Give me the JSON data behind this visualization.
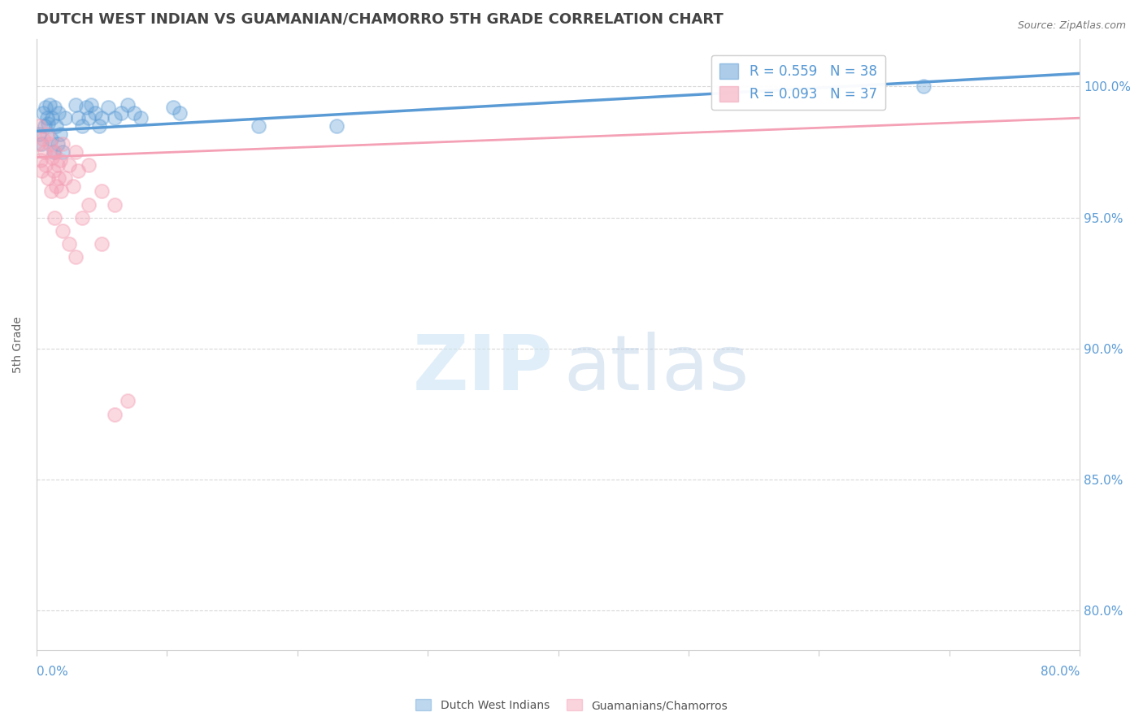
{
  "title": "DUTCH WEST INDIAN VS GUAMANIAN/CHAMORRO 5TH GRADE CORRELATION CHART",
  "source": "Source: ZipAtlas.com",
  "ylabel": "5th Grade",
  "ylabel_right_labels": [
    "100.0%",
    "95.0%",
    "90.0%",
    "85.0%",
    "80.0%"
  ],
  "ylabel_right_values": [
    1.0,
    0.95,
    0.9,
    0.85,
    0.8
  ],
  "xlim": [
    0.0,
    0.8
  ],
  "ylim": [
    0.785,
    1.018
  ],
  "legend_blue": "R = 0.559   N = 38",
  "legend_pink": "R = 0.093   N = 37",
  "legend_bottom_blue": "Dutch West Indians",
  "legend_bottom_pink": "Guamanians/Chamorros",
  "blue_color": "#5b9bd5",
  "pink_color": "#f4a0b5",
  "blue_scatter": [
    [
      0.002,
      0.982
    ],
    [
      0.004,
      0.978
    ],
    [
      0.005,
      0.99
    ],
    [
      0.006,
      0.985
    ],
    [
      0.007,
      0.992
    ],
    [
      0.008,
      0.988
    ],
    [
      0.009,
      0.986
    ],
    [
      0.01,
      0.993
    ],
    [
      0.011,
      0.98
    ],
    [
      0.012,
      0.988
    ],
    [
      0.013,
      0.975
    ],
    [
      0.014,
      0.992
    ],
    [
      0.015,
      0.985
    ],
    [
      0.016,
      0.978
    ],
    [
      0.017,
      0.99
    ],
    [
      0.018,
      0.982
    ],
    [
      0.02,
      0.975
    ],
    [
      0.022,
      0.988
    ],
    [
      0.03,
      0.993
    ],
    [
      0.032,
      0.988
    ],
    [
      0.035,
      0.985
    ],
    [
      0.038,
      0.992
    ],
    [
      0.04,
      0.988
    ],
    [
      0.042,
      0.993
    ],
    [
      0.045,
      0.99
    ],
    [
      0.048,
      0.985
    ],
    [
      0.05,
      0.988
    ],
    [
      0.055,
      0.992
    ],
    [
      0.06,
      0.988
    ],
    [
      0.065,
      0.99
    ],
    [
      0.07,
      0.993
    ],
    [
      0.075,
      0.99
    ],
    [
      0.08,
      0.988
    ],
    [
      0.105,
      0.992
    ],
    [
      0.11,
      0.99
    ],
    [
      0.17,
      0.985
    ],
    [
      0.23,
      0.985
    ],
    [
      0.68,
      1.0
    ]
  ],
  "pink_scatter": [
    [
      0.001,
      0.978
    ],
    [
      0.002,
      0.985
    ],
    [
      0.003,
      0.972
    ],
    [
      0.004,
      0.968
    ],
    [
      0.005,
      0.98
    ],
    [
      0.006,
      0.975
    ],
    [
      0.007,
      0.97
    ],
    [
      0.008,
      0.982
    ],
    [
      0.009,
      0.965
    ],
    [
      0.01,
      0.978
    ],
    [
      0.011,
      0.96
    ],
    [
      0.012,
      0.973
    ],
    [
      0.013,
      0.968
    ],
    [
      0.014,
      0.975
    ],
    [
      0.015,
      0.962
    ],
    [
      0.016,
      0.97
    ],
    [
      0.017,
      0.965
    ],
    [
      0.018,
      0.972
    ],
    [
      0.019,
      0.96
    ],
    [
      0.02,
      0.978
    ],
    [
      0.022,
      0.965
    ],
    [
      0.025,
      0.97
    ],
    [
      0.028,
      0.962
    ],
    [
      0.03,
      0.975
    ],
    [
      0.032,
      0.968
    ],
    [
      0.04,
      0.97
    ],
    [
      0.05,
      0.96
    ],
    [
      0.06,
      0.955
    ],
    [
      0.014,
      0.95
    ],
    [
      0.02,
      0.945
    ],
    [
      0.025,
      0.94
    ],
    [
      0.03,
      0.935
    ],
    [
      0.035,
      0.95
    ],
    [
      0.04,
      0.955
    ],
    [
      0.05,
      0.94
    ],
    [
      0.06,
      0.875
    ],
    [
      0.07,
      0.88
    ]
  ],
  "blue_trend_x": [
    0.0,
    0.8
  ],
  "blue_trend_y": [
    0.983,
    1.005
  ],
  "pink_trend_x": [
    0.0,
    0.8
  ],
  "pink_trend_y": [
    0.973,
    0.988
  ],
  "watermark_zip": "ZIP",
  "watermark_atlas": "atlas",
  "background_color": "#ffffff",
  "grid_color": "#d8d8d8",
  "title_color": "#444444",
  "tick_color": "#5b9bd5"
}
